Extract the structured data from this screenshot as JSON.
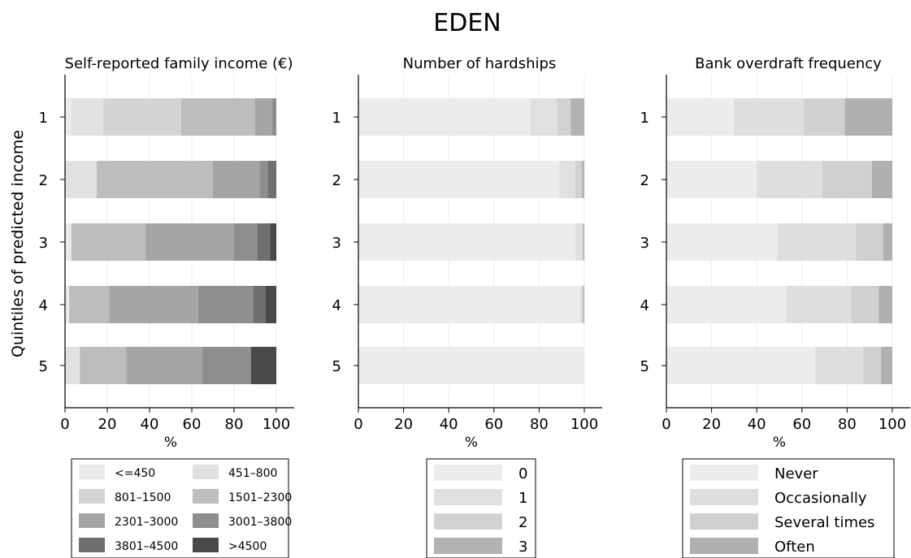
{
  "title": "EDEN",
  "y_axis_label": "Quintiles of predicted income",
  "chart_data": [
    {
      "type": "bar",
      "orientation": "horizontal",
      "stacked": true,
      "title": "Self-reported family income (€)",
      "xlabel": "%",
      "ylabel": "Quintiles of predicted income",
      "xlim": [
        0,
        100
      ],
      "xticks": [
        "0",
        "20",
        "40",
        "60",
        "80",
        "100"
      ],
      "categories": [
        "1",
        "2",
        "3",
        "4",
        "5"
      ],
      "grid": true,
      "legend_position": "bottom",
      "legend_columns": 2,
      "series": [
        {
          "name": "<=450",
          "color": "#ebebeb",
          "values": [
            3,
            0,
            3,
            2,
            0
          ]
        },
        {
          "name": "451–800",
          "color": "#e1e1e1",
          "values": [
            15,
            15,
            0,
            0,
            7
          ]
        },
        {
          "name": "801–1500",
          "color": "#d4d4d4",
          "values": [
            37,
            0,
            0,
            0,
            0
          ]
        },
        {
          "name": "1501–2300",
          "color": "#bdbdbd",
          "values": [
            35,
            55,
            35,
            19,
            22
          ]
        },
        {
          "name": "2301–3000",
          "color": "#a5a5a5",
          "values": [
            8,
            22,
            42,
            42,
            36
          ]
        },
        {
          "name": "3001–3800",
          "color": "#8e8e8e",
          "values": [
            2,
            4,
            11,
            26,
            23
          ]
        },
        {
          "name": "3801–4500",
          "color": "#6f6f6f",
          "values": [
            0,
            4,
            6,
            6,
            0
          ]
        },
        {
          "name": ">4500",
          "color": "#494949",
          "values": [
            0,
            0,
            3,
            5,
            12
          ]
        }
      ]
    },
    {
      "type": "bar",
      "orientation": "horizontal",
      "stacked": true,
      "title": "Number of hardships",
      "xlabel": "%",
      "xlim": [
        0,
        100
      ],
      "xticks": [
        "0",
        "20",
        "40",
        "60",
        "80",
        "100"
      ],
      "categories": [
        "1",
        "2",
        "3",
        "4",
        "5"
      ],
      "grid": true,
      "legend_position": "bottom",
      "legend_columns": 1,
      "series": [
        {
          "name": "0",
          "color": "#ececec",
          "values": [
            76,
            89,
            96,
            98,
            100
          ]
        },
        {
          "name": "1",
          "color": "#e0e0e0",
          "values": [
            12,
            7,
            3,
            1,
            0
          ]
        },
        {
          "name": "2",
          "color": "#d2d2d2",
          "values": [
            6,
            3,
            0.5,
            0.5,
            0
          ]
        },
        {
          "name": "3",
          "color": "#b2b2b2",
          "values": [
            6,
            1,
            0.5,
            0.5,
            0
          ]
        }
      ]
    },
    {
      "type": "bar",
      "orientation": "horizontal",
      "stacked": true,
      "title": "Bank overdraft frequency",
      "xlabel": "%",
      "xlim": [
        0,
        100
      ],
      "xticks": [
        "0",
        "20",
        "40",
        "60",
        "80",
        "100"
      ],
      "categories": [
        "1",
        "2",
        "3",
        "4",
        "5"
      ],
      "grid": true,
      "legend_position": "bottom",
      "legend_columns": 1,
      "series": [
        {
          "name": "Never",
          "color": "#ececec",
          "values": [
            30,
            40,
            49,
            53,
            66
          ]
        },
        {
          "name": "Occasionally",
          "color": "#dedede",
          "values": [
            31,
            29,
            35,
            29,
            21
          ]
        },
        {
          "name": "Several times",
          "color": "#d0d0d0",
          "values": [
            18,
            22,
            12,
            12,
            8
          ]
        },
        {
          "name": "Often",
          "color": "#b0b0b0",
          "values": [
            21,
            9,
            4,
            6,
            5
          ]
        }
      ]
    }
  ]
}
